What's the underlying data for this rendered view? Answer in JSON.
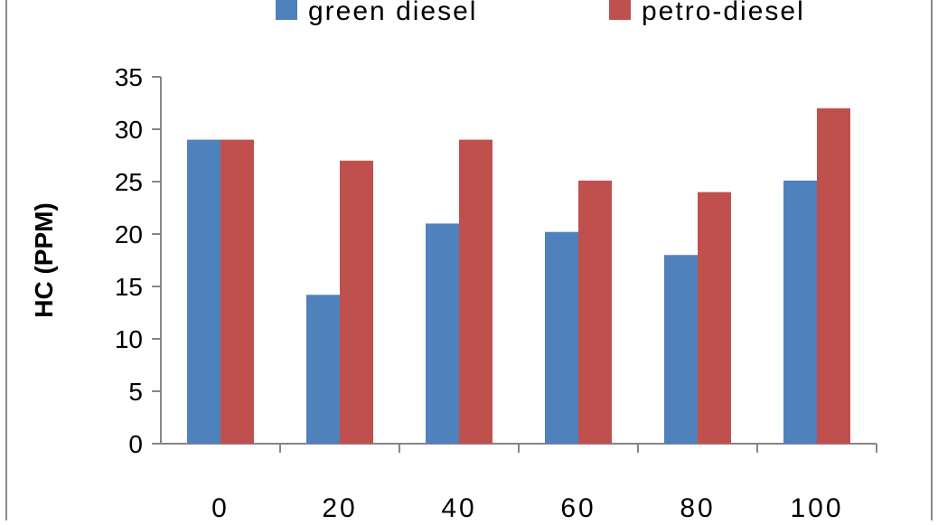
{
  "chart_data": {
    "type": "bar",
    "title": "",
    "xlabel": "",
    "ylabel": "HC (PPM)",
    "ylim": [
      0,
      35
    ],
    "yticks": [
      0,
      5,
      10,
      15,
      20,
      25,
      30,
      35
    ],
    "categories": [
      "0",
      "20",
      "40",
      "60",
      "80",
      "100"
    ],
    "series": [
      {
        "name": "green diesel",
        "color": "#4F81BD",
        "values": [
          29,
          14.2,
          21,
          20.2,
          18,
          25.1
        ]
      },
      {
        "name": "petro-diesel",
        "color": "#C0504D",
        "values": [
          29,
          27,
          29,
          25.1,
          24,
          32
        ]
      }
    ],
    "grid": false,
    "legend": "top"
  }
}
